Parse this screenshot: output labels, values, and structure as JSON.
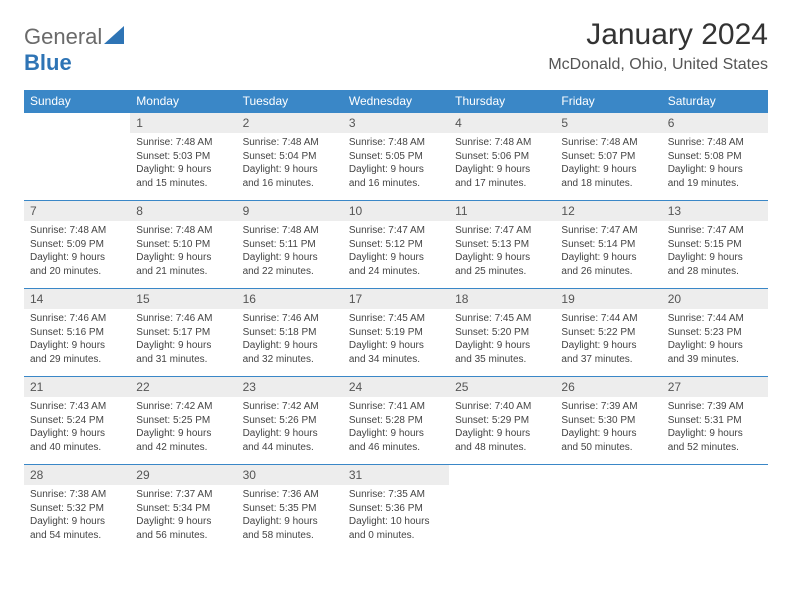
{
  "brand": {
    "part1": "General",
    "part2": "Blue"
  },
  "title": "January 2024",
  "location": "McDonald, Ohio, United States",
  "colors": {
    "header_bg": "#3a87c7",
    "header_text": "#ffffff",
    "daynum_bg": "#ededed",
    "rule": "#3a87c7",
    "brand_gray": "#6a6a6a",
    "brand_blue": "#2e74b5"
  },
  "weekdays": [
    "Sunday",
    "Monday",
    "Tuesday",
    "Wednesday",
    "Thursday",
    "Friday",
    "Saturday"
  ],
  "weeks": [
    [
      null,
      {
        "n": "1",
        "sr": "Sunrise: 7:48 AM",
        "ss": "Sunset: 5:03 PM",
        "d1": "Daylight: 9 hours",
        "d2": "and 15 minutes."
      },
      {
        "n": "2",
        "sr": "Sunrise: 7:48 AM",
        "ss": "Sunset: 5:04 PM",
        "d1": "Daylight: 9 hours",
        "d2": "and 16 minutes."
      },
      {
        "n": "3",
        "sr": "Sunrise: 7:48 AM",
        "ss": "Sunset: 5:05 PM",
        "d1": "Daylight: 9 hours",
        "d2": "and 16 minutes."
      },
      {
        "n": "4",
        "sr": "Sunrise: 7:48 AM",
        "ss": "Sunset: 5:06 PM",
        "d1": "Daylight: 9 hours",
        "d2": "and 17 minutes."
      },
      {
        "n": "5",
        "sr": "Sunrise: 7:48 AM",
        "ss": "Sunset: 5:07 PM",
        "d1": "Daylight: 9 hours",
        "d2": "and 18 minutes."
      },
      {
        "n": "6",
        "sr": "Sunrise: 7:48 AM",
        "ss": "Sunset: 5:08 PM",
        "d1": "Daylight: 9 hours",
        "d2": "and 19 minutes."
      }
    ],
    [
      {
        "n": "7",
        "sr": "Sunrise: 7:48 AM",
        "ss": "Sunset: 5:09 PM",
        "d1": "Daylight: 9 hours",
        "d2": "and 20 minutes."
      },
      {
        "n": "8",
        "sr": "Sunrise: 7:48 AM",
        "ss": "Sunset: 5:10 PM",
        "d1": "Daylight: 9 hours",
        "d2": "and 21 minutes."
      },
      {
        "n": "9",
        "sr": "Sunrise: 7:48 AM",
        "ss": "Sunset: 5:11 PM",
        "d1": "Daylight: 9 hours",
        "d2": "and 22 minutes."
      },
      {
        "n": "10",
        "sr": "Sunrise: 7:47 AM",
        "ss": "Sunset: 5:12 PM",
        "d1": "Daylight: 9 hours",
        "d2": "and 24 minutes."
      },
      {
        "n": "11",
        "sr": "Sunrise: 7:47 AM",
        "ss": "Sunset: 5:13 PM",
        "d1": "Daylight: 9 hours",
        "d2": "and 25 minutes."
      },
      {
        "n": "12",
        "sr": "Sunrise: 7:47 AM",
        "ss": "Sunset: 5:14 PM",
        "d1": "Daylight: 9 hours",
        "d2": "and 26 minutes."
      },
      {
        "n": "13",
        "sr": "Sunrise: 7:47 AM",
        "ss": "Sunset: 5:15 PM",
        "d1": "Daylight: 9 hours",
        "d2": "and 28 minutes."
      }
    ],
    [
      {
        "n": "14",
        "sr": "Sunrise: 7:46 AM",
        "ss": "Sunset: 5:16 PM",
        "d1": "Daylight: 9 hours",
        "d2": "and 29 minutes."
      },
      {
        "n": "15",
        "sr": "Sunrise: 7:46 AM",
        "ss": "Sunset: 5:17 PM",
        "d1": "Daylight: 9 hours",
        "d2": "and 31 minutes."
      },
      {
        "n": "16",
        "sr": "Sunrise: 7:46 AM",
        "ss": "Sunset: 5:18 PM",
        "d1": "Daylight: 9 hours",
        "d2": "and 32 minutes."
      },
      {
        "n": "17",
        "sr": "Sunrise: 7:45 AM",
        "ss": "Sunset: 5:19 PM",
        "d1": "Daylight: 9 hours",
        "d2": "and 34 minutes."
      },
      {
        "n": "18",
        "sr": "Sunrise: 7:45 AM",
        "ss": "Sunset: 5:20 PM",
        "d1": "Daylight: 9 hours",
        "d2": "and 35 minutes."
      },
      {
        "n": "19",
        "sr": "Sunrise: 7:44 AM",
        "ss": "Sunset: 5:22 PM",
        "d1": "Daylight: 9 hours",
        "d2": "and 37 minutes."
      },
      {
        "n": "20",
        "sr": "Sunrise: 7:44 AM",
        "ss": "Sunset: 5:23 PM",
        "d1": "Daylight: 9 hours",
        "d2": "and 39 minutes."
      }
    ],
    [
      {
        "n": "21",
        "sr": "Sunrise: 7:43 AM",
        "ss": "Sunset: 5:24 PM",
        "d1": "Daylight: 9 hours",
        "d2": "and 40 minutes."
      },
      {
        "n": "22",
        "sr": "Sunrise: 7:42 AM",
        "ss": "Sunset: 5:25 PM",
        "d1": "Daylight: 9 hours",
        "d2": "and 42 minutes."
      },
      {
        "n": "23",
        "sr": "Sunrise: 7:42 AM",
        "ss": "Sunset: 5:26 PM",
        "d1": "Daylight: 9 hours",
        "d2": "and 44 minutes."
      },
      {
        "n": "24",
        "sr": "Sunrise: 7:41 AM",
        "ss": "Sunset: 5:28 PM",
        "d1": "Daylight: 9 hours",
        "d2": "and 46 minutes."
      },
      {
        "n": "25",
        "sr": "Sunrise: 7:40 AM",
        "ss": "Sunset: 5:29 PM",
        "d1": "Daylight: 9 hours",
        "d2": "and 48 minutes."
      },
      {
        "n": "26",
        "sr": "Sunrise: 7:39 AM",
        "ss": "Sunset: 5:30 PM",
        "d1": "Daylight: 9 hours",
        "d2": "and 50 minutes."
      },
      {
        "n": "27",
        "sr": "Sunrise: 7:39 AM",
        "ss": "Sunset: 5:31 PM",
        "d1": "Daylight: 9 hours",
        "d2": "and 52 minutes."
      }
    ],
    [
      {
        "n": "28",
        "sr": "Sunrise: 7:38 AM",
        "ss": "Sunset: 5:32 PM",
        "d1": "Daylight: 9 hours",
        "d2": "and 54 minutes."
      },
      {
        "n": "29",
        "sr": "Sunrise: 7:37 AM",
        "ss": "Sunset: 5:34 PM",
        "d1": "Daylight: 9 hours",
        "d2": "and 56 minutes."
      },
      {
        "n": "30",
        "sr": "Sunrise: 7:36 AM",
        "ss": "Sunset: 5:35 PM",
        "d1": "Daylight: 9 hours",
        "d2": "and 58 minutes."
      },
      {
        "n": "31",
        "sr": "Sunrise: 7:35 AM",
        "ss": "Sunset: 5:36 PM",
        "d1": "Daylight: 10 hours",
        "d2": "and 0 minutes."
      },
      null,
      null,
      null
    ]
  ]
}
